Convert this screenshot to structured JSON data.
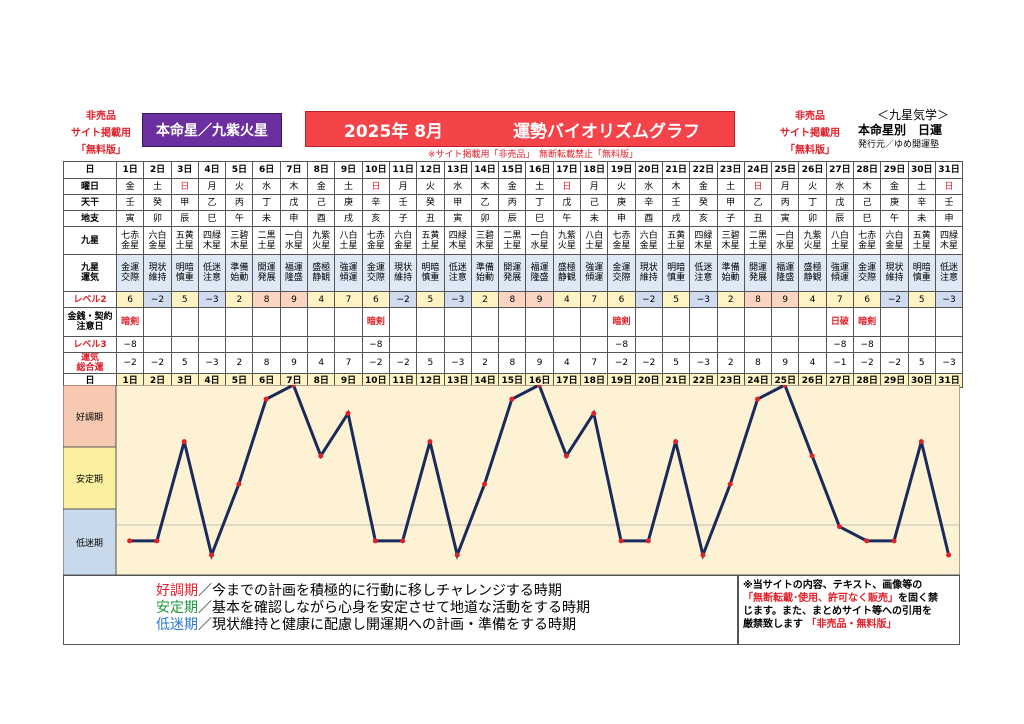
{
  "header": {
    "left_note": [
      "非売品",
      "サイト掲載用",
      "「無料版」"
    ],
    "honmei_label": "本命星／九紫火星",
    "title_year": "2025年 8月",
    "title_text": "運勢バイオリズムグラフ",
    "right_note": [
      "非売品",
      "サイト掲載用",
      "「無料版」"
    ],
    "kyusei_title": "＜九星気学＞",
    "kyusei_sub": "本命星別　日運",
    "publisher": "発行元／ゆめ開運塾",
    "notice": "※サイト掲載用「非売品」　無断転載禁止「無料版」"
  },
  "row_labels": {
    "day": "日",
    "weekday": "曜日",
    "kan": "天干",
    "shi": "地支",
    "kyusei": "九星",
    "unki": [
      "九星",
      "運気"
    ],
    "level2": "レベル2",
    "money": [
      "金銭・契約",
      "注意日"
    ],
    "level3": "レベル3",
    "total": [
      "運気",
      "総合運"
    ]
  },
  "days": [
    "1日",
    "2日",
    "3日",
    "4日",
    "5日",
    "6日",
    "7日",
    "8日",
    "9日",
    "10日",
    "11日",
    "12日",
    "13日",
    "14日",
    "15日",
    "16日",
    "17日",
    "18日",
    "19日",
    "20日",
    "21日",
    "22日",
    "23日",
    "24日",
    "25日",
    "26日",
    "27日",
    "28日",
    "29日",
    "30日",
    "31日"
  ],
  "weekdays": [
    "金",
    "土",
    "日",
    "月",
    "火",
    "水",
    "木",
    "金",
    "土",
    "日",
    "月",
    "火",
    "水",
    "木",
    "金",
    "土",
    "日",
    "月",
    "火",
    "水",
    "木",
    "金",
    "土",
    "日",
    "月",
    "火",
    "水",
    "木",
    "金",
    "土",
    "日"
  ],
  "kan": [
    "壬",
    "癸",
    "甲",
    "乙",
    "丙",
    "丁",
    "戊",
    "己",
    "庚",
    "辛",
    "壬",
    "癸",
    "甲",
    "乙",
    "丙",
    "丁",
    "戊",
    "己",
    "庚",
    "辛",
    "壬",
    "癸",
    "甲",
    "乙",
    "丙",
    "丁",
    "戊",
    "己",
    "庚",
    "辛",
    "壬"
  ],
  "shi": [
    "寅",
    "卯",
    "辰",
    "巳",
    "午",
    "未",
    "申",
    "酉",
    "戌",
    "亥",
    "子",
    "丑",
    "寅",
    "卯",
    "辰",
    "巳",
    "午",
    "未",
    "申",
    "酉",
    "戌",
    "亥",
    "子",
    "丑",
    "寅",
    "卯",
    "辰",
    "巳",
    "午",
    "未",
    "申"
  ],
  "kyusei": [
    [
      "七赤",
      "金星"
    ],
    [
      "六白",
      "金星"
    ],
    [
      "五黄",
      "土星"
    ],
    [
      "四緑",
      "木星"
    ],
    [
      "三碧",
      "木星"
    ],
    [
      "二黒",
      "土星"
    ],
    [
      "一白",
      "水星"
    ],
    [
      "九紫",
      "火星"
    ],
    [
      "八白",
      "土星"
    ],
    [
      "七赤",
      "金星"
    ],
    [
      "六白",
      "金星"
    ],
    [
      "五黄",
      "土星"
    ],
    [
      "四緑",
      "木星"
    ],
    [
      "三碧",
      "木星"
    ],
    [
      "二黒",
      "土星"
    ],
    [
      "一白",
      "水星"
    ],
    [
      "九紫",
      "火星"
    ],
    [
      "八白",
      "土星"
    ],
    [
      "七赤",
      "金星"
    ],
    [
      "六白",
      "金星"
    ],
    [
      "五黄",
      "土星"
    ],
    [
      "四緑",
      "木星"
    ],
    [
      "三碧",
      "木星"
    ],
    [
      "二黒",
      "土星"
    ],
    [
      "一白",
      "水星"
    ],
    [
      "九紫",
      "火星"
    ],
    [
      "八白",
      "土星"
    ],
    [
      "七赤",
      "金星"
    ],
    [
      "六白",
      "金星"
    ],
    [
      "五黄",
      "土星"
    ],
    [
      "四緑",
      "木星"
    ]
  ],
  "unki": [
    [
      "金運",
      "交際"
    ],
    [
      "現状",
      "維持"
    ],
    [
      "明暗",
      "慎重"
    ],
    [
      "低迷",
      "注意"
    ],
    [
      "準備",
      "始動"
    ],
    [
      "開運",
      "発展"
    ],
    [
      "福運",
      "隆盛"
    ],
    [
      "盛極",
      "静観"
    ],
    [
      "強運",
      "傾運"
    ],
    [
      "金運",
      "交際"
    ],
    [
      "現状",
      "維持"
    ],
    [
      "明暗",
      "慎重"
    ],
    [
      "低迷",
      "注意"
    ],
    [
      "準備",
      "始動"
    ],
    [
      "開運",
      "発展"
    ],
    [
      "福運",
      "隆盛"
    ],
    [
      "盛極",
      "静観"
    ],
    [
      "強運",
      "傾運"
    ],
    [
      "金運",
      "交際"
    ],
    [
      "現状",
      "維持"
    ],
    [
      "明暗",
      "慎重"
    ],
    [
      "低迷",
      "注意"
    ],
    [
      "準備",
      "始動"
    ],
    [
      "開運",
      "発展"
    ],
    [
      "福運",
      "隆盛"
    ],
    [
      "盛極",
      "静観"
    ],
    [
      "強運",
      "傾運"
    ],
    [
      "金運",
      "交際"
    ],
    [
      "現状",
      "維持"
    ],
    [
      "明暗",
      "慎重"
    ],
    [
      "低迷",
      "注意"
    ]
  ],
  "level2": [
    "6",
    "−2",
    "5",
    "−3",
    "2",
    "8",
    "9",
    "4",
    "7",
    "6",
    "−2",
    "5",
    "−3",
    "2",
    "8",
    "9",
    "4",
    "7",
    "6",
    "−2",
    "5",
    "−3",
    "2",
    "8",
    "9",
    "4",
    "7",
    "6",
    "−2",
    "5",
    "−3"
  ],
  "money": [
    "暗剣",
    "",
    "",
    "",
    "",
    "",
    "",
    "",
    "",
    "暗剣",
    "",
    "",
    "",
    "",
    "",
    "",
    "",
    "",
    "暗剣",
    "",
    "",
    "",
    "",
    "",
    "",
    "",
    "日破",
    "暗剣",
    "",
    "",
    ""
  ],
  "level3": [
    "−8",
    "",
    "",
    "",
    "",
    "",
    "",
    "",
    "",
    "−8",
    "",
    "",
    "",
    "",
    "",
    "",
    "",
    "",
    "−8",
    "",
    "",
    "",
    "",
    "",
    "",
    "",
    "−8",
    "−8",
    "",
    "",
    ""
  ],
  "total": [
    "−2",
    "−2",
    "5",
    "−3",
    "2",
    "8",
    "9",
    "4",
    "7",
    "−2",
    "−2",
    "5",
    "−3",
    "2",
    "8",
    "9",
    "4",
    "7",
    "−2",
    "−2",
    "5",
    "−3",
    "2",
    "8",
    "9",
    "4",
    "−1",
    "−2",
    "−2",
    "5",
    "−3"
  ],
  "chart_data": {
    "type": "line",
    "x": [
      "1日",
      "2日",
      "3日",
      "4日",
      "5日",
      "6日",
      "7日",
      "8日",
      "9日",
      "10日",
      "11日",
      "12日",
      "13日",
      "14日",
      "15日",
      "16日",
      "17日",
      "18日",
      "19日",
      "20日",
      "21日",
      "22日",
      "23日",
      "24日",
      "25日",
      "26日",
      "27日",
      "28日",
      "29日",
      "30日",
      "31日"
    ],
    "series": [
      {
        "values": [
          -2,
          -2,
          5,
          -3,
          2,
          8,
          9,
          4,
          7,
          -2,
          -2,
          5,
          -3,
          2,
          8,
          9,
          4,
          7,
          -2,
          -2,
          5,
          -3,
          2,
          8,
          9,
          4,
          -1,
          -2,
          -2,
          5,
          -3
        ]
      }
    ],
    "ylim": [
      -3,
      9
    ],
    "bands": [
      "好調期",
      "安定期",
      "低迷期"
    ],
    "line_color": "#1a2a5a",
    "point_color": "#e0202a"
  },
  "legend": [
    {
      "term": "好調期",
      "text": "／今までの計画を積極的に行動に移しチャレンジする時期"
    },
    {
      "term": "安定期",
      "text": "／基本を確認しながら心身を安定させて地道な活動をする時期"
    },
    {
      "term": "低迷期",
      "text": "／現状維持と健康に配慮し開運期への計画・準備をする時期"
    }
  ],
  "copyright": {
    "line1": "※当サイトの内容、テキスト、画像等の",
    "line2_red": "「無断転載･使用、許可なく販売」",
    "line2_rest": "を固く禁",
    "line3": "じます。また、まとめサイト等への引用を",
    "line4": "厳禁致します",
    "line4_red": "「非売品・無料版」"
  }
}
